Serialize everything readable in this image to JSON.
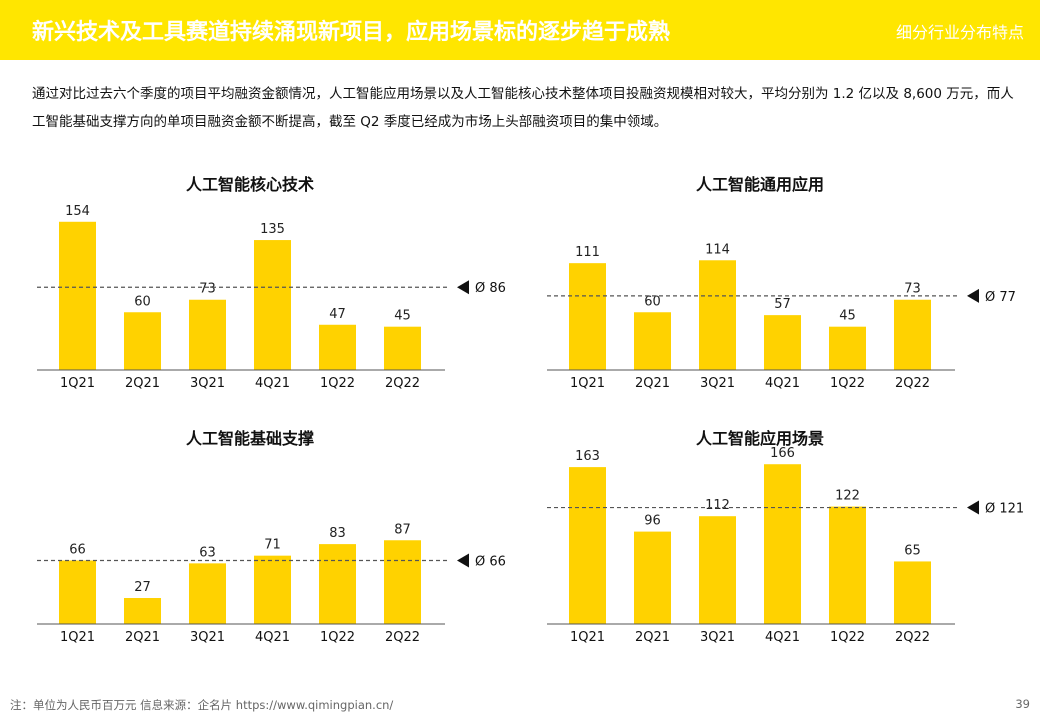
{
  "header": {
    "title": "新兴技术及工具赛道持续涌现新项目，应用场景标的逐步趋于成熟",
    "subtitle": "细分行业分布特点"
  },
  "intro": "通过对比过去六个季度的项目平均融资金额情况，人工智能应用场景以及人工智能核心技术整体项目投融资规模相对较大，平均分别为 1.2 亿以及 8,600 万元，而人工智能基础支撑方向的单项目融资金额不断提高，截至 Q2 季度已经成为市场上头部融资项目的集中领域。",
  "footer": {
    "note": "注：单位为人民币百万元   信息来源：企名片 https://www.qimingpian.cn/",
    "page": "39"
  },
  "colors": {
    "accent": "#FFE600",
    "bar": "#FFD200",
    "text": "#111111"
  },
  "chart_data": [
    {
      "type": "bar",
      "title": "人工智能核心技术",
      "categories": [
        "1Q21",
        "2Q21",
        "3Q21",
        "4Q21",
        "1Q22",
        "2Q22"
      ],
      "values": [
        154,
        60,
        73,
        135,
        47,
        45
      ],
      "average": 86,
      "average_label": "Ø 86",
      "ylim": [
        0,
        160
      ]
    },
    {
      "type": "bar",
      "title": "人工智能通用应用",
      "categories": [
        "1Q21",
        "2Q21",
        "3Q21",
        "4Q21",
        "1Q22",
        "2Q22"
      ],
      "values": [
        111,
        60,
        114,
        57,
        45,
        73
      ],
      "average": 77,
      "average_label": "Ø 77",
      "ylim": [
        0,
        160
      ]
    },
    {
      "type": "bar",
      "title": "人工智能基础支撑",
      "categories": [
        "1Q21",
        "2Q21",
        "3Q21",
        "4Q21",
        "1Q22",
        "2Q22"
      ],
      "values": [
        66,
        27,
        63,
        71,
        83,
        87
      ],
      "average": 66,
      "average_label": "Ø 66",
      "ylim": [
        0,
        160
      ]
    },
    {
      "type": "bar",
      "title": "人工智能应用场景",
      "categories": [
        "1Q21",
        "2Q21",
        "3Q21",
        "4Q21",
        "1Q22",
        "2Q22"
      ],
      "values": [
        163,
        96,
        112,
        166,
        122,
        65
      ],
      "average": 121,
      "average_label": "Ø 121",
      "ylim": [
        0,
        160
      ]
    }
  ]
}
